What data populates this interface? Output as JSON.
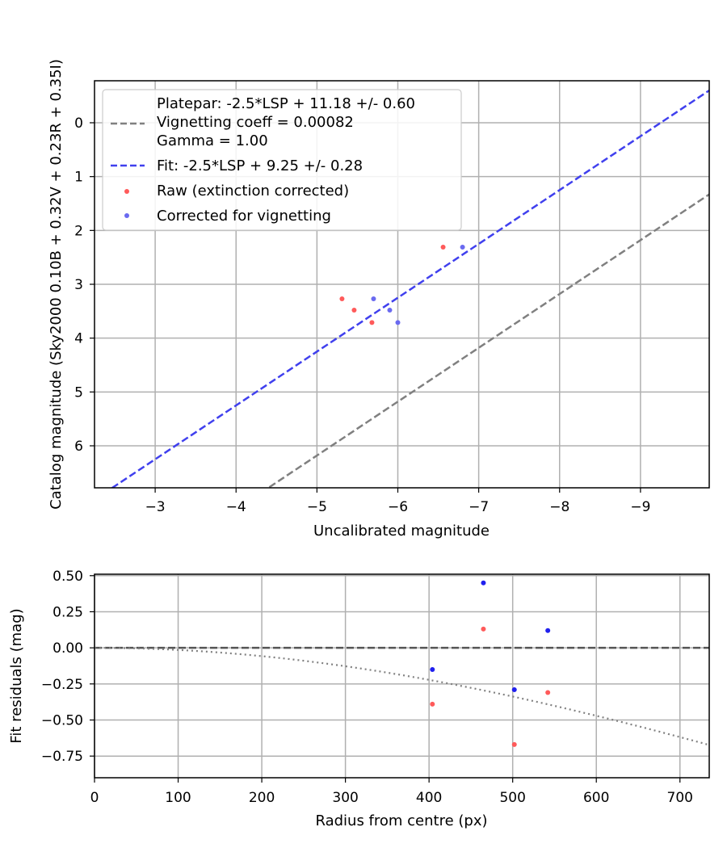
{
  "chart_data": [
    {
      "type": "scatter",
      "xlabel": "Uncalibrated magnitude",
      "ylabel": "Catalog magnitude (Sky2000 0.10B + 0.32V + 0.23R + 0.35I)",
      "xlim": [
        -2.25,
        -9.85
      ],
      "ylim": [
        6.78,
        -0.78
      ],
      "x_inverted": true,
      "y_inverted": true,
      "grid": true,
      "legend_position": "top-left",
      "xticks": [
        -3,
        -4,
        -5,
        -6,
        -7,
        -8,
        -9
      ],
      "yticks": [
        0,
        1,
        2,
        3,
        4,
        5,
        6
      ],
      "xtick_labels": [
        "−3",
        "−4",
        "−5",
        "−6",
        "−7",
        "−8",
        "−9"
      ],
      "ytick_labels": [
        "0",
        "1",
        "2",
        "3",
        "4",
        "5",
        "6"
      ],
      "lines": [
        {
          "name": "Platepar: -2.5*LSP + 11.18 +/- 0.60\nVignetting coeff = 0.00082\nGamma = 1.00",
          "slope": 1.0,
          "intercept": 11.18,
          "style": "dashed",
          "color": "#808080"
        },
        {
          "name": "Fit: -2.5*LSP + 9.25 +/- 0.28",
          "slope": 1.0,
          "intercept": 9.25,
          "style": "dashed",
          "color": "#4040ee"
        }
      ],
      "series": [
        {
          "name": "Raw (extinction corrected)",
          "color": "#ff5a5a",
          "points": [
            [
              -6.56,
              2.31
            ],
            [
              -5.31,
              3.27
            ],
            [
              -5.46,
              3.48
            ],
            [
              -5.68,
              3.71
            ]
          ]
        },
        {
          "name": "Corrected for vignetting",
          "color": "#6a6af0",
          "points": [
            [
              -6.8,
              2.31
            ],
            [
              -5.7,
              3.27
            ],
            [
              -5.9,
              3.48
            ],
            [
              -6.0,
              3.71
            ]
          ]
        }
      ]
    },
    {
      "type": "scatter",
      "xlabel": "Radius from centre (px)",
      "ylabel": "Fit residuals (mag)",
      "xlim": [
        0,
        735
      ],
      "ylim": [
        -0.9,
        0.51
      ],
      "grid": true,
      "xticks": [
        0,
        100,
        200,
        300,
        400,
        500,
        600,
        700
      ],
      "yticks": [
        0.5,
        0.25,
        0.0,
        -0.25,
        -0.5,
        -0.75
      ],
      "xtick_labels": [
        "0",
        "100",
        "200",
        "300",
        "400",
        "500",
        "600",
        "700"
      ],
      "ytick_labels": [
        "0.50",
        "0.25",
        "0.00",
        "−0.25",
        "−0.50",
        "−0.75"
      ],
      "reference_line": {
        "y": 0.0,
        "style": "dashed",
        "color": "#555555"
      },
      "vignetting_curve": {
        "coefficient": 0.00082,
        "style": "dotted",
        "color": "#808080"
      },
      "series": [
        {
          "name": "Raw (extinction corrected)",
          "color": "#ff5a5a",
          "points": [
            [
              404,
              -0.39
            ],
            [
              465,
              0.13
            ],
            [
              502,
              -0.67
            ],
            [
              542,
              -0.31
            ]
          ]
        },
        {
          "name": "Corrected for vignetting",
          "color": "#2020ee",
          "points": [
            [
              404,
              -0.15
            ],
            [
              465,
              0.45
            ],
            [
              502,
              -0.29
            ],
            [
              542,
              0.12
            ]
          ]
        }
      ]
    }
  ]
}
